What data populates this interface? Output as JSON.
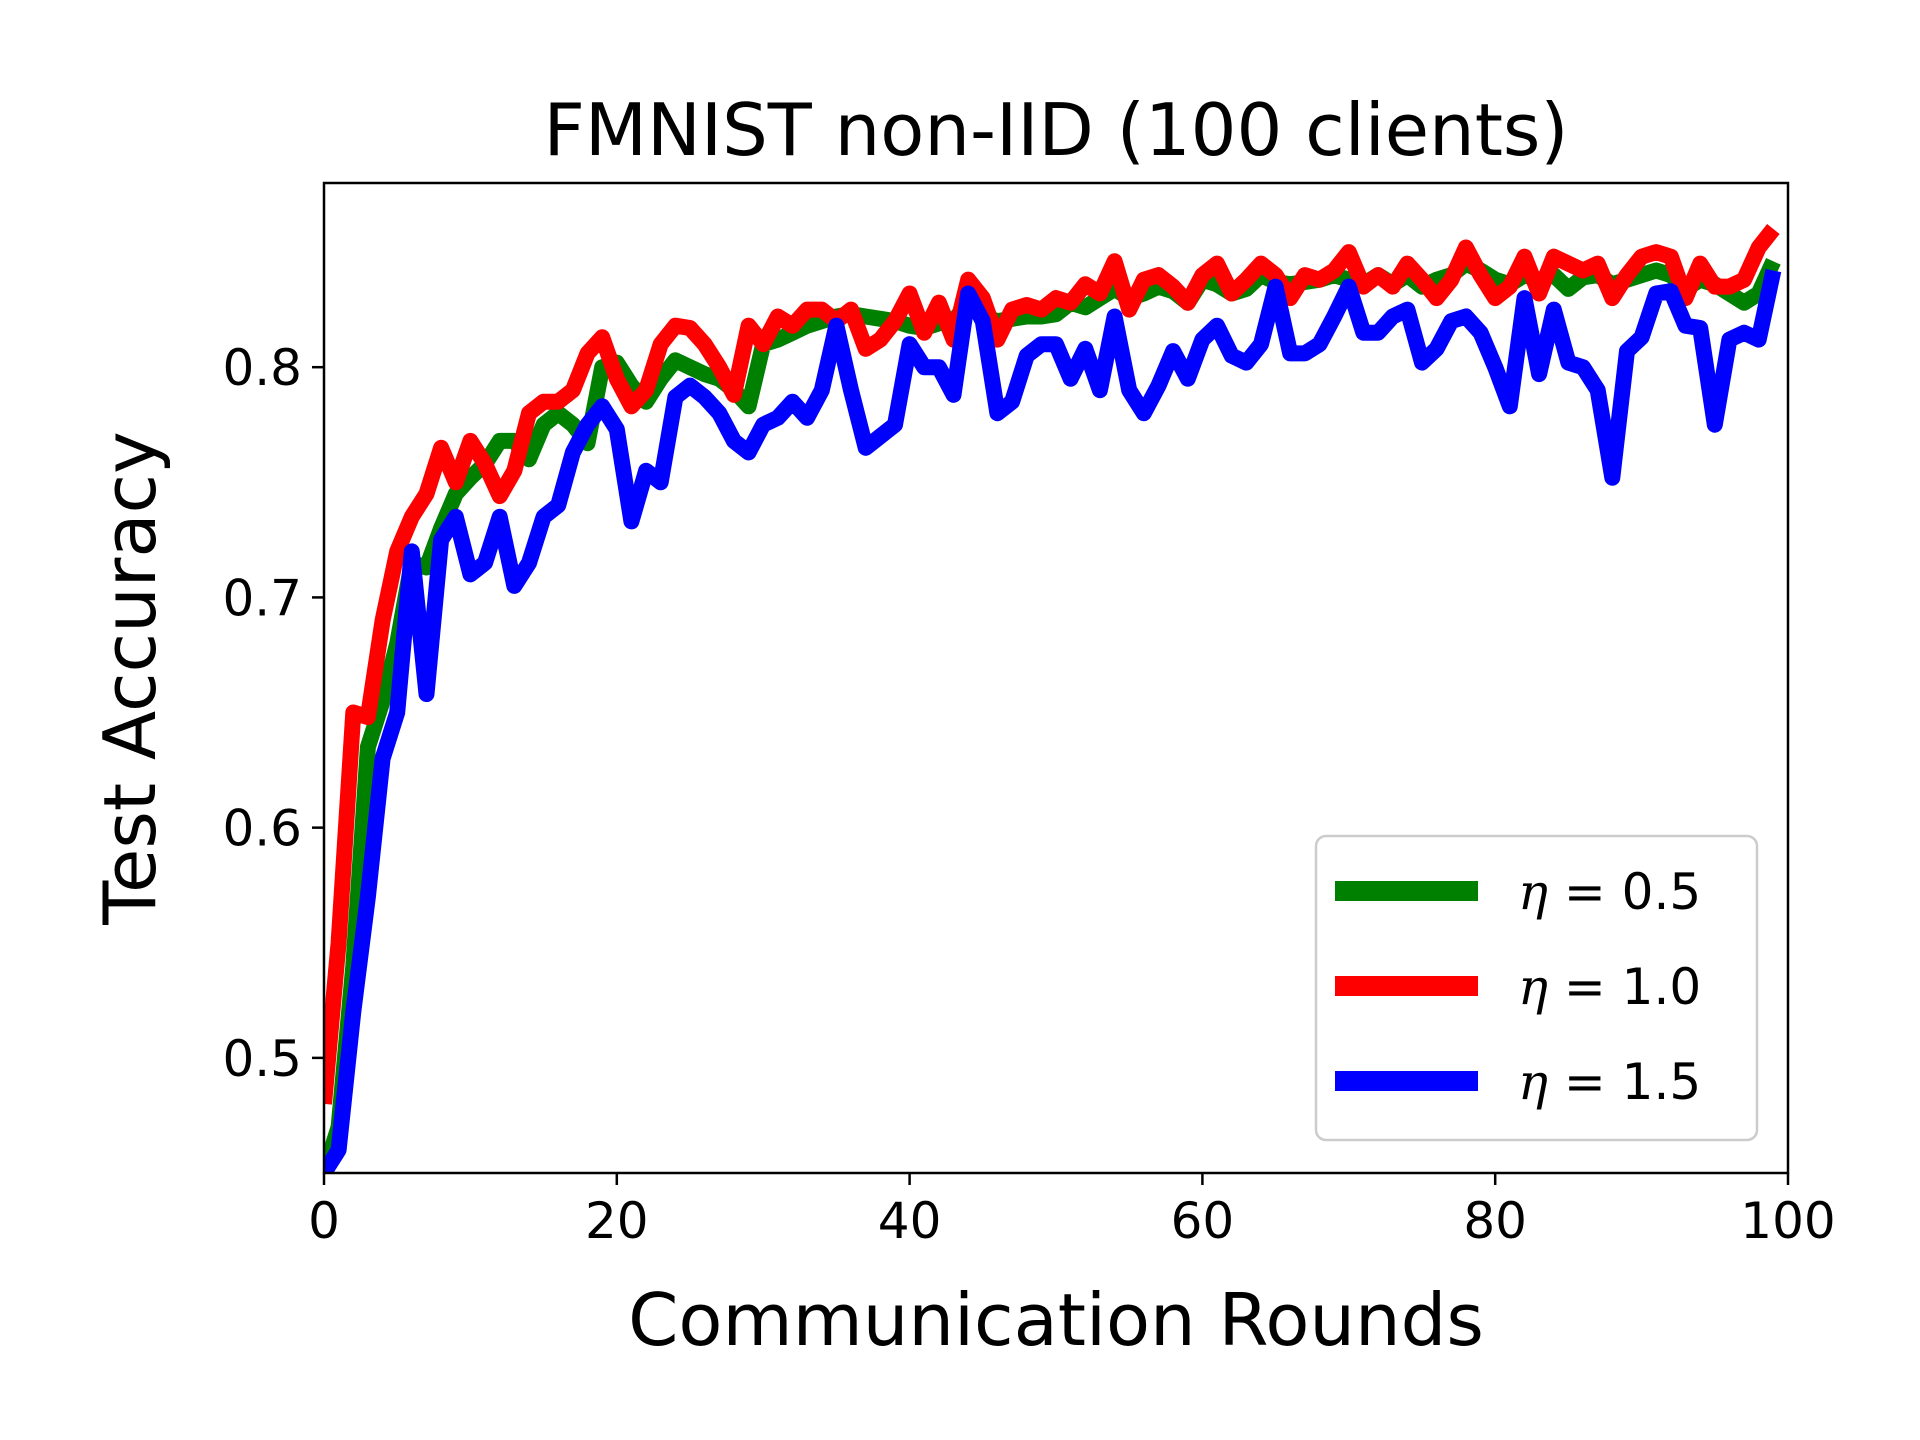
{
  "chart_data": {
    "type": "line",
    "title": "FMNIST non-IID (100 clients)",
    "xlabel": "Communication Rounds",
    "ylabel": "Test Accuracy",
    "xlim": [
      0,
      100
    ],
    "ylim": [
      0.45,
      0.88
    ],
    "xticks": [
      0,
      20,
      40,
      60,
      80,
      100
    ],
    "yticks": [
      0.5,
      0.6,
      0.7,
      0.8
    ],
    "xtick_labels": [
      "0",
      "20",
      "40",
      "60",
      "80",
      "100"
    ],
    "ytick_labels": [
      "0.5",
      "0.6",
      "0.7",
      "0.8"
    ],
    "grid": false,
    "legend_position": "bottom-right",
    "x": [
      0,
      1,
      2,
      3,
      4,
      5,
      6,
      7,
      8,
      9,
      10,
      11,
      12,
      13,
      14,
      15,
      16,
      17,
      18,
      19,
      20,
      21,
      22,
      23,
      24,
      25,
      26,
      27,
      28,
      29,
      30,
      31,
      32,
      33,
      34,
      35,
      36,
      37,
      38,
      39,
      40,
      41,
      42,
      43,
      44,
      45,
      46,
      47,
      48,
      49,
      50,
      51,
      52,
      53,
      54,
      55,
      56,
      57,
      58,
      59,
      60,
      61,
      62,
      63,
      64,
      65,
      66,
      67,
      68,
      69,
      70,
      71,
      72,
      73,
      74,
      75,
      76,
      77,
      78,
      79,
      80,
      81,
      82,
      83,
      84,
      85,
      86,
      87,
      88,
      89,
      90,
      91,
      92,
      93,
      94,
      95,
      96,
      97,
      98,
      99
    ],
    "series": [
      {
        "legend_prefix": "η",
        "legend_value": " = 0.5",
        "color": "#008000",
        "values": [
          0.45,
          0.47,
          0.54,
          0.635,
          0.655,
          0.68,
          0.715,
          0.713,
          0.73,
          0.745,
          0.752,
          0.758,
          0.768,
          0.768,
          0.76,
          0.775,
          0.78,
          0.775,
          0.767,
          0.8,
          0.802,
          0.792,
          0.785,
          0.795,
          0.803,
          0.8,
          0.797,
          0.795,
          0.79,
          0.783,
          0.81,
          0.812,
          0.815,
          0.818,
          0.82,
          0.822,
          0.823,
          0.822,
          0.821,
          0.82,
          0.818,
          0.817,
          0.819,
          0.82,
          0.828,
          0.822,
          0.82,
          0.821,
          0.822,
          0.822,
          0.823,
          0.828,
          0.826,
          0.83,
          0.834,
          0.83,
          0.832,
          0.835,
          0.833,
          0.828,
          0.838,
          0.836,
          0.832,
          0.834,
          0.84,
          0.837,
          0.836,
          0.837,
          0.838,
          0.84,
          0.838,
          0.836,
          0.84,
          0.836,
          0.84,
          0.835,
          0.838,
          0.84,
          0.845,
          0.842,
          0.838,
          0.836,
          0.84,
          0.838,
          0.84,
          0.834,
          0.839,
          0.84,
          0.836,
          0.838,
          0.84,
          0.842,
          0.84,
          0.834,
          0.838,
          0.836,
          0.832,
          0.828,
          0.832,
          0.846
        ]
      },
      {
        "legend_prefix": "η",
        "legend_value": " = 1.0",
        "color": "#ff0000",
        "values": [
          0.48,
          0.55,
          0.65,
          0.648,
          0.69,
          0.72,
          0.735,
          0.745,
          0.765,
          0.75,
          0.768,
          0.758,
          0.744,
          0.755,
          0.78,
          0.785,
          0.785,
          0.79,
          0.806,
          0.813,
          0.795,
          0.783,
          0.79,
          0.81,
          0.818,
          0.817,
          0.81,
          0.8,
          0.788,
          0.818,
          0.81,
          0.822,
          0.818,
          0.825,
          0.825,
          0.82,
          0.825,
          0.808,
          0.812,
          0.82,
          0.832,
          0.815,
          0.828,
          0.812,
          0.838,
          0.83,
          0.812,
          0.825,
          0.827,
          0.825,
          0.83,
          0.828,
          0.836,
          0.832,
          0.846,
          0.825,
          0.838,
          0.84,
          0.835,
          0.828,
          0.84,
          0.845,
          0.832,
          0.838,
          0.845,
          0.84,
          0.83,
          0.84,
          0.838,
          0.842,
          0.85,
          0.835,
          0.84,
          0.835,
          0.845,
          0.838,
          0.83,
          0.838,
          0.852,
          0.84,
          0.83,
          0.835,
          0.848,
          0.832,
          0.848,
          0.845,
          0.842,
          0.845,
          0.83,
          0.84,
          0.848,
          0.85,
          0.848,
          0.83,
          0.845,
          0.835,
          0.835,
          0.838,
          0.852,
          0.86
        ]
      },
      {
        "legend_prefix": "η",
        "legend_value": " = 1.5",
        "color": "#0000ff",
        "values": [
          0.45,
          0.46,
          0.52,
          0.57,
          0.63,
          0.65,
          0.72,
          0.658,
          0.725,
          0.735,
          0.71,
          0.715,
          0.735,
          0.705,
          0.715,
          0.735,
          0.74,
          0.763,
          0.775,
          0.783,
          0.773,
          0.733,
          0.755,
          0.75,
          0.787,
          0.792,
          0.787,
          0.78,
          0.768,
          0.763,
          0.775,
          0.778,
          0.785,
          0.778,
          0.79,
          0.818,
          0.79,
          0.765,
          0.77,
          0.775,
          0.81,
          0.8,
          0.8,
          0.788,
          0.832,
          0.82,
          0.78,
          0.785,
          0.805,
          0.81,
          0.81,
          0.795,
          0.808,
          0.79,
          0.822,
          0.79,
          0.78,
          0.792,
          0.807,
          0.795,
          0.812,
          0.818,
          0.805,
          0.802,
          0.81,
          0.835,
          0.806,
          0.806,
          0.81,
          0.822,
          0.835,
          0.815,
          0.815,
          0.822,
          0.825,
          0.802,
          0.808,
          0.82,
          0.822,
          0.815,
          0.8,
          0.783,
          0.83,
          0.797,
          0.825,
          0.802,
          0.8,
          0.79,
          0.752,
          0.807,
          0.813,
          0.832,
          0.833,
          0.818,
          0.817,
          0.775,
          0.812,
          0.815,
          0.812,
          0.842
        ]
      }
    ]
  }
}
